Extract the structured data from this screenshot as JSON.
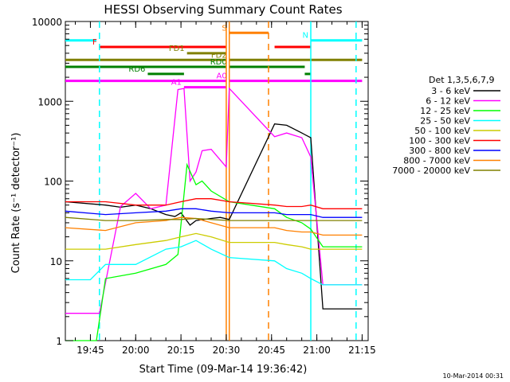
{
  "chart_data": {
    "type": "line",
    "title": "HESSI Observing Summary Count Rates",
    "xlabel": "Start Time (09-Mar-14 19:36:42)",
    "ylabel": "Count Rate (s⁻¹ detector⁻¹)",
    "xlim": [
      "19:36:42",
      "21:17:00"
    ],
    "ylim": [
      1,
      10000
    ],
    "yscale": "log",
    "x_ticks": [
      "19:45",
      "20:00",
      "20:15",
      "20:30",
      "20:45",
      "21:00",
      "21:15"
    ],
    "y_ticks": [
      "1",
      "10",
      "100",
      "1000",
      "10000"
    ],
    "legend_title": "Det 1,3,5,6,7,9",
    "legend_position": "right",
    "timestamp": "10-Mar-2014 00:31",
    "series": [
      {
        "name": "3 - 6 keV",
        "color": "#000000",
        "x": [
          "19:36:42",
          "19:50",
          "19:55",
          "20:00",
          "20:05",
          "20:10",
          "20:13",
          "20:15",
          "20:18",
          "20:20",
          "20:25",
          "20:28",
          "20:31",
          "20:46",
          "20:50",
          "20:55",
          "20:58",
          "21:02",
          "21:15"
        ],
        "y": [
          55,
          50,
          47,
          50,
          45,
          38,
          36,
          40,
          28,
          32,
          34,
          35,
          33,
          520,
          500,
          400,
          350,
          2.5,
          2.5
        ]
      },
      {
        "name": "6 - 12 keV",
        "color": "#ff00ff",
        "x": [
          "19:36:42",
          "19:48",
          "19:55",
          "20:00",
          "20:05",
          "20:10",
          "20:14",
          "20:16",
          "20:18",
          "20:20",
          "20:22",
          "20:25",
          "20:30",
          "20:31",
          "20:46",
          "20:50",
          "20:55",
          "20:58",
          "21:02",
          "21:15"
        ],
        "y": [
          2.2,
          2.2,
          48,
          70,
          45,
          50,
          1400,
          1450,
          100,
          130,
          240,
          250,
          150,
          1450,
          360,
          400,
          350,
          200,
          5,
          5
        ]
      },
      {
        "name": "12 - 25 keV",
        "color": "#00ff00",
        "x": [
          "19:36:42",
          "19:47",
          "19:50",
          "20:00",
          "20:10",
          "20:14",
          "20:17",
          "20:20",
          "20:22",
          "20:25",
          "20:31",
          "20:46",
          "20:50",
          "20:55",
          "20:58",
          "21:02",
          "21:15"
        ],
        "y": [
          1,
          1,
          6,
          7,
          9,
          12,
          160,
          90,
          100,
          75,
          55,
          45,
          35,
          30,
          25,
          15,
          15
        ]
      },
      {
        "name": "25 - 50 keV",
        "color": "#00ffff",
        "x": [
          "19:36:42",
          "19:45",
          "19:50",
          "20:00",
          "20:10",
          "20:15",
          "20:20",
          "20:25",
          "20:31",
          "20:46",
          "20:50",
          "20:55",
          "20:58",
          "21:02",
          "21:10",
          "21:15"
        ],
        "y": [
          5.8,
          5.8,
          9,
          9,
          14,
          15,
          18,
          14,
          11,
          10,
          8,
          7,
          6,
          5,
          5,
          5
        ]
      },
      {
        "name": "50 - 100 keV",
        "color": "#cccc00",
        "x": [
          "19:36:42",
          "19:50",
          "20:00",
          "20:10",
          "20:15",
          "20:20",
          "20:25",
          "20:31",
          "20:46",
          "20:50",
          "20:55",
          "20:58",
          "21:02",
          "21:15"
        ],
        "y": [
          14,
          14,
          16,
          18,
          20,
          22,
          20,
          17,
          17,
          16,
          15,
          14,
          14,
          14
        ]
      },
      {
        "name": "100 - 300 keV",
        "color": "#ff0000",
        "x": [
          "19:36:42",
          "19:50",
          "20:00",
          "20:10",
          "20:15",
          "20:20",
          "20:25",
          "20:31",
          "20:46",
          "20:50",
          "20:55",
          "20:58",
          "21:02",
          "21:15"
        ],
        "y": [
          55,
          55,
          50,
          50,
          55,
          60,
          60,
          55,
          50,
          48,
          48,
          50,
          45,
          45
        ]
      },
      {
        "name": "300 - 800 keV",
        "color": "#0000ff",
        "x": [
          "19:36:42",
          "19:50",
          "20:00",
          "20:10",
          "20:15",
          "20:20",
          "20:25",
          "20:31",
          "20:46",
          "20:50",
          "20:55",
          "20:58",
          "21:02",
          "21:15"
        ],
        "y": [
          42,
          38,
          40,
          42,
          45,
          45,
          42,
          40,
          40,
          38,
          38,
          38,
          35,
          35
        ]
      },
      {
        "name": "800 - 7000 keV",
        "color": "#ff8000",
        "x": [
          "19:36:42",
          "19:50",
          "20:00",
          "20:10",
          "20:15",
          "20:20",
          "20:25",
          "20:31",
          "20:46",
          "20:50",
          "20:55",
          "20:58",
          "21:02",
          "21:15"
        ],
        "y": [
          26,
          24,
          30,
          32,
          35,
          34,
          30,
          26,
          26,
          24,
          23,
          23,
          21,
          21
        ]
      },
      {
        "name": "7000 - 20000 keV",
        "color": "#808000",
        "x": [
          "19:36:42",
          "19:50",
          "20:00",
          "20:10",
          "20:15",
          "20:20",
          "20:25",
          "20:31",
          "20:46",
          "20:50",
          "20:55",
          "20:58",
          "21:02",
          "21:15"
        ],
        "y": [
          35,
          32,
          32,
          33,
          33,
          34,
          33,
          32,
          32,
          32,
          32,
          32,
          32,
          32
        ]
      }
    ],
    "flag_bars": [
      {
        "label": "N",
        "color": "#00ffff",
        "level": 5800,
        "segments": [
          [
            "19:36:42",
            "19:47"
          ],
          [
            "20:58",
            "21:15"
          ]
        ]
      },
      {
        "label": "S",
        "color": "#ff8000",
        "level": 7200,
        "segments": [
          [
            "20:31",
            "20:44"
          ]
        ]
      },
      {
        "label": "F",
        "color": "#ff0000",
        "level": 4800,
        "segments": [
          [
            "19:48",
            "20:30"
          ],
          [
            "20:46",
            "20:58"
          ]
        ]
      },
      {
        "label": "FD1",
        "color": "#808000",
        "level": 4000,
        "segments": [
          [
            "20:17",
            "20:30"
          ]
        ]
      },
      {
        "label": "FD2",
        "color": "#808000",
        "level": 3300,
        "segments": [
          [
            "19:36:42",
            "20:30"
          ],
          [
            "20:31",
            "21:15"
          ]
        ]
      },
      {
        "label": "RD0",
        "color": "#008000",
        "level": 2700,
        "segments": [
          [
            "19:36:42",
            "20:30"
          ],
          [
            "20:31",
            "20:56"
          ]
        ]
      },
      {
        "label": "RD6",
        "color": "#008000",
        "level": 2200,
        "segments": [
          [
            "20:04",
            "20:16"
          ],
          [
            "20:56",
            "20:58"
          ]
        ]
      },
      {
        "label": "A0",
        "color": "#ff00ff",
        "level": 1800,
        "segments": [
          [
            "19:36:42",
            "20:30"
          ],
          [
            "20:31",
            "21:15"
          ]
        ]
      },
      {
        "label": "A1",
        "color": "#ff00ff",
        "level": 1500,
        "segments": [
          [
            "20:16",
            "20:30"
          ]
        ]
      }
    ],
    "vertical_markers": [
      {
        "x": "19:48",
        "color": "#00ffff",
        "style": "dashed"
      },
      {
        "x": "20:30",
        "color": "#ff8000",
        "style": "solid"
      },
      {
        "x": "20:31",
        "color": "#ff8000",
        "style": "solid"
      },
      {
        "x": "20:44",
        "color": "#ff8000",
        "style": "dashed"
      },
      {
        "x": "20:58",
        "color": "#00ffff",
        "style": "solid"
      },
      {
        "x": "21:13",
        "color": "#00ffff",
        "style": "dashed"
      }
    ]
  }
}
